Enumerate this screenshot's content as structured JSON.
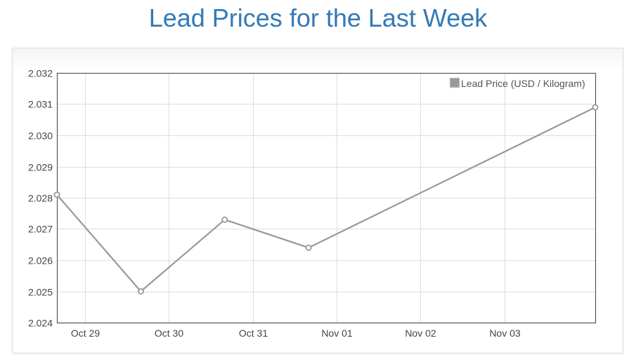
{
  "page": {
    "title": "Lead Prices for the Last Week"
  },
  "colors": {
    "title": "#337ab7",
    "series": "#999999",
    "grid": "#dddddd",
    "axis": "#555555",
    "tick_text": "#444444"
  },
  "chart_data": {
    "type": "line",
    "title": "",
    "xlabel": "",
    "ylabel": "",
    "grid": true,
    "legend_position": "top-right",
    "x_type": "date",
    "xlim": [
      "2023-10-28 16:00",
      "2023-11-04 02:00"
    ],
    "ylim": [
      2.024,
      2.032
    ],
    "y_ticks": [
      "2.024",
      "2.025",
      "2.026",
      "2.027",
      "2.028",
      "2.029",
      "2.030",
      "2.031",
      "2.032"
    ],
    "x_ticks": [
      {
        "date": "2023-10-29",
        "label": "Oct 29"
      },
      {
        "date": "2023-10-30",
        "label": "Oct 30"
      },
      {
        "date": "2023-10-31",
        "label": "Oct 31"
      },
      {
        "date": "2023-11-01",
        "label": "Nov 01"
      },
      {
        "date": "2023-11-02",
        "label": "Nov 02"
      },
      {
        "date": "2023-11-03",
        "label": "Nov 03"
      }
    ],
    "series": [
      {
        "name": "Lead Price (USD / Kilogram)",
        "color": "#999999",
        "points": [
          {
            "x": "2023-10-28 16:00",
            "y": 2.0281
          },
          {
            "x": "2023-10-29 16:00",
            "y": 2.025
          },
          {
            "x": "2023-10-30 16:00",
            "y": 2.0273
          },
          {
            "x": "2023-10-31 16:00",
            "y": 2.0264
          },
          {
            "x": "2023-11-04 02:00",
            "y": 2.0309
          }
        ]
      }
    ]
  }
}
